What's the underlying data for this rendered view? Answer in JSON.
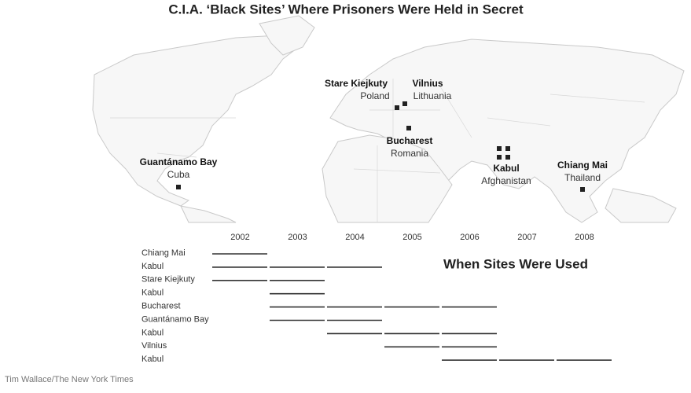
{
  "title": "C.I.A. ‘Black Sites’ Where Prisoners Were Held in Secret",
  "credit": "Tim Wallace/The New York Times",
  "sites": [
    {
      "name": "Stare Kiejkuty",
      "country": "Poland"
    },
    {
      "name": "Vilnius",
      "country": "Lithuania"
    },
    {
      "name": "Bucharest",
      "country": "Romania"
    },
    {
      "name": "Kabul",
      "country": "Afghanistan"
    },
    {
      "name": "Chiang Mai",
      "country": "Thailand"
    },
    {
      "name": "Guantánamo Bay",
      "country": "Cuba"
    }
  ],
  "timeline": {
    "title": "When Sites Were Used",
    "years": [
      2002,
      2003,
      2004,
      2005,
      2006,
      2007,
      2008
    ],
    "rows": [
      {
        "site": "Chiang Mai",
        "start": 2002,
        "end": 2002
      },
      {
        "site": "Kabul",
        "start": 2002,
        "end": 2004
      },
      {
        "site": "Stare Kiejkuty",
        "start": 2002,
        "end": 2003
      },
      {
        "site": "Kabul",
        "start": 2003,
        "end": 2003
      },
      {
        "site": "Bucharest",
        "start": 2003,
        "end": 2006
      },
      {
        "site": "Guantánamo Bay",
        "start": 2003,
        "end": 2004
      },
      {
        "site": "Kabul",
        "start": 2004,
        "end": 2006
      },
      {
        "site": "Vilnius",
        "start": 2005,
        "end": 2006
      },
      {
        "site": "Kabul",
        "start": 2006,
        "end": 2008
      }
    ]
  }
}
